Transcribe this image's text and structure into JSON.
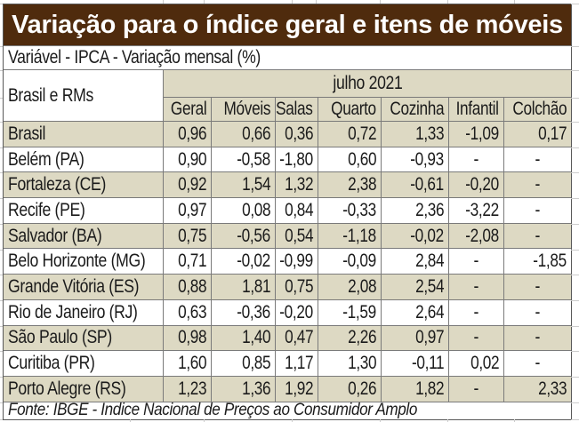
{
  "title": "Variação para o índice geral e itens de móveis",
  "subtitle": "Variável - IPCA - Variação mensal (%)",
  "source_note": "Fonte: IBGE - Índice Nacional de Preços ao Consumidor Amplo",
  "chart_data": {
    "type": "table",
    "row_header": "Brasil e RMs",
    "period_header": "julho 2021",
    "columns": [
      "Geral",
      "Móveis",
      "Salas",
      "Quarto",
      "Cozinha",
      "Infantil",
      "Colchão"
    ],
    "rows": [
      {
        "label": "Brasil",
        "values": [
          "0,96",
          "0,66",
          "0,36",
          "0,72",
          "1,33",
          "-1,09",
          "0,17"
        ]
      },
      {
        "label": "Belém (PA)",
        "values": [
          "0,90",
          "-0,58",
          "-1,80",
          "0,60",
          "-0,93",
          "-",
          "-"
        ]
      },
      {
        "label": "Fortaleza (CE)",
        "values": [
          "0,92",
          "1,54",
          "1,32",
          "2,38",
          "-0,61",
          "-0,20",
          "-"
        ]
      },
      {
        "label": "Recife (PE)",
        "values": [
          "0,97",
          "0,08",
          "0,84",
          "-0,33",
          "2,36",
          "-3,22",
          "-"
        ]
      },
      {
        "label": "Salvador (BA)",
        "values": [
          "0,75",
          "-0,56",
          "0,54",
          "-1,18",
          "-0,02",
          "-2,08",
          "-"
        ]
      },
      {
        "label": "Belo Horizonte (MG)",
        "values": [
          "0,71",
          "-0,02",
          "-0,99",
          "-0,09",
          "2,84",
          "-",
          "-1,85"
        ]
      },
      {
        "label": "Grande Vitória (ES)",
        "values": [
          "0,88",
          "1,81",
          "0,75",
          "2,08",
          "2,54",
          "-",
          "-"
        ]
      },
      {
        "label": "Rio de Janeiro (RJ)",
        "values": [
          "0,63",
          "-0,36",
          "-0,20",
          "-1,59",
          "2,64",
          "-",
          "-"
        ]
      },
      {
        "label": "São Paulo (SP)",
        "values": [
          "0,98",
          "1,40",
          "0,47",
          "2,26",
          "0,97",
          "-",
          "-"
        ]
      },
      {
        "label": "Curitiba (PR)",
        "values": [
          "1,60",
          "0,85",
          "1,17",
          "1,30",
          "-0,11",
          "0,02",
          "-"
        ]
      },
      {
        "label": "Porto Alegre (RS)",
        "values": [
          "1,23",
          "1,36",
          "1,92",
          "0,26",
          "1,82",
          "-",
          "2,33"
        ]
      }
    ],
    "colors": {
      "title_bg": "#4F2B0D",
      "stripe": "#DDD9C3",
      "border": "#7a7a7a"
    }
  }
}
